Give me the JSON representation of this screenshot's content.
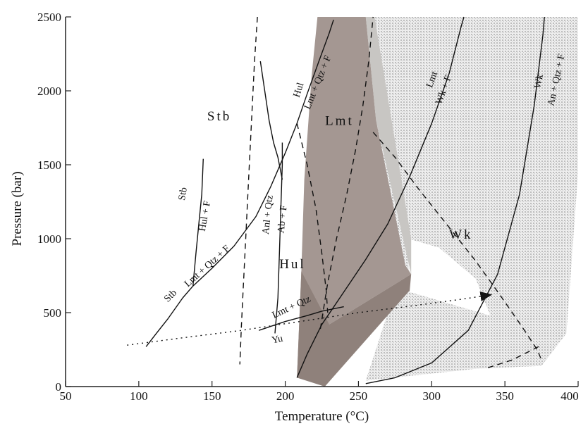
{
  "chart_data": {
    "type": "line",
    "title": "",
    "xlabel": "Temperature (°C)",
    "ylabel": "Pressure (bar)",
    "xlim": [
      50,
      400
    ],
    "ylim": [
      0,
      2500
    ],
    "xticks": [
      "50",
      "100",
      "150",
      "200",
      "250",
      "300",
      "350",
      "400"
    ],
    "yticks": [
      "0",
      "500",
      "1000",
      "1500",
      "2000",
      "2500"
    ],
    "grid": false,
    "fields": [
      {
        "label": "Stb",
        "x": 155,
        "y": 1800
      },
      {
        "label": "Lmt",
        "x": 237,
        "y": 1770
      },
      {
        "label": "Hul",
        "x": 205,
        "y": 800
      },
      {
        "label": "Wk",
        "x": 320,
        "y": 1000
      }
    ],
    "reactions": [
      {
        "label": "Stb",
        "x": 132,
        "y": 1300,
        "rotate": -80
      },
      {
        "label": "Hul + F",
        "x": 147,
        "y": 1150,
        "rotate": -80
      },
      {
        "label": "Stb",
        "x": 123,
        "y": 600,
        "rotate": -45
      },
      {
        "label": "Lmt + Qtz + F",
        "x": 148,
        "y": 800,
        "rotate": -42
      },
      {
        "label": "Anl + Qtz",
        "x": 190,
        "y": 1160,
        "rotate": -84
      },
      {
        "label": "Ab + F",
        "x": 200,
        "y": 1130,
        "rotate": -84
      },
      {
        "label": "Hul",
        "x": 211,
        "y": 2000,
        "rotate": -72
      },
      {
        "label": "Lmt + Qtz + F",
        "x": 224,
        "y": 2050,
        "rotate": -68
      },
      {
        "label": "Lmt + Qtz",
        "x": 205,
        "y": 520,
        "rotate": -25
      },
      {
        "label": "Yu",
        "x": 195,
        "y": 300,
        "rotate": -12
      },
      {
        "label": "Lmt",
        "x": 302,
        "y": 2070,
        "rotate": -70
      },
      {
        "label": "Wk + F",
        "x": 310,
        "y": 2000,
        "rotate": -70
      },
      {
        "label": "Wk",
        "x": 375,
        "y": 2060,
        "rotate": -78
      },
      {
        "label": "An + Qtz + F",
        "x": 387,
        "y": 2070,
        "rotate": -78
      }
    ],
    "series": [
      {
        "style": "solid",
        "points": [
          [
            105,
            270
          ],
          [
            112,
            360
          ],
          [
            120,
            460
          ],
          [
            130,
            600
          ],
          [
            137,
            680
          ],
          [
            150,
            800
          ],
          [
            165,
            950
          ],
          [
            180,
            1150
          ],
          [
            190,
            1350
          ],
          [
            200,
            1580
          ],
          [
            208,
            1780
          ],
          [
            215,
            1980
          ],
          [
            223,
            2200
          ],
          [
            230,
            2390
          ],
          [
            233,
            2480
          ]
        ]
      },
      {
        "style": "solid",
        "points": [
          [
            137,
            680
          ],
          [
            139,
            900
          ],
          [
            141,
            1100
          ],
          [
            143,
            1300
          ],
          [
            144,
            1540
          ]
        ]
      },
      {
        "style": "solid",
        "points": [
          [
            193,
            360
          ],
          [
            195,
            600
          ],
          [
            196,
            900
          ],
          [
            197,
            1200
          ],
          [
            198,
            1500
          ],
          [
            198,
            1650
          ]
        ]
      },
      {
        "style": "solid",
        "points": [
          [
            183,
            2200
          ],
          [
            186,
            2000
          ],
          [
            189,
            1800
          ],
          [
            192,
            1650
          ],
          [
            195,
            1550
          ],
          [
            198,
            1400
          ]
        ]
      },
      {
        "style": "solid",
        "points": [
          [
            208,
            60
          ],
          [
            215,
            220
          ],
          [
            225,
            420
          ],
          [
            240,
            640
          ],
          [
            255,
            860
          ],
          [
            270,
            1100
          ],
          [
            285,
            1420
          ],
          [
            300,
            1780
          ],
          [
            312,
            2120
          ],
          [
            320,
            2430
          ],
          [
            322,
            2500
          ]
        ]
      },
      {
        "style": "solid",
        "points": [
          [
            182,
            380
          ],
          [
            200,
            440
          ],
          [
            215,
            480
          ],
          [
            225,
            510
          ],
          [
            240,
            540
          ]
        ]
      },
      {
        "style": "solid",
        "points": [
          [
            255,
            20
          ],
          [
            275,
            60
          ],
          [
            300,
            160
          ],
          [
            325,
            380
          ],
          [
            345,
            760
          ],
          [
            360,
            1300
          ],
          [
            370,
            1900
          ],
          [
            376,
            2380
          ],
          [
            377,
            2500
          ]
        ]
      },
      {
        "style": "dashed",
        "points": [
          [
            181,
            2500
          ],
          [
            179,
            2200
          ],
          [
            177,
            1800
          ],
          [
            175,
            1400
          ],
          [
            173,
            1000
          ],
          [
            171,
            600
          ],
          [
            170,
            400
          ],
          [
            169,
            150
          ]
        ]
      },
      {
        "style": "dashed",
        "points": [
          [
            208,
            1780
          ],
          [
            215,
            1500
          ],
          [
            221,
            1200
          ],
          [
            225,
            900
          ],
          [
            228,
            650
          ],
          [
            229,
            500
          ]
        ]
      },
      {
        "style": "dashed",
        "points": [
          [
            224,
            390
          ],
          [
            229,
            700
          ],
          [
            235,
            1000
          ],
          [
            242,
            1300
          ],
          [
            248,
            1600
          ],
          [
            253,
            1900
          ],
          [
            257,
            2200
          ],
          [
            260,
            2500
          ]
        ]
      },
      {
        "style": "dashed",
        "points": [
          [
            260,
            1720
          ],
          [
            275,
            1550
          ],
          [
            290,
            1350
          ],
          [
            310,
            1100
          ],
          [
            330,
            850
          ],
          [
            348,
            600
          ],
          [
            362,
            400
          ],
          [
            372,
            250
          ],
          [
            375,
            180
          ]
        ]
      },
      {
        "style": "dashed",
        "points": [
          [
            373,
            270
          ],
          [
            355,
            180
          ],
          [
            336,
            120
          ]
        ]
      },
      {
        "style": "dotted",
        "points": [
          [
            92,
            280
          ],
          [
            130,
            330
          ],
          [
            170,
            380
          ],
          [
            210,
            440
          ],
          [
            250,
            500
          ],
          [
            290,
            550
          ],
          [
            320,
            590
          ],
          [
            340,
            620
          ]
        ]
      }
    ]
  },
  "colors": {
    "shade_dark": "#a49792",
    "shade_mid": "#8f817b",
    "shade_light": "#c8c6c3",
    "stipple": "#d7d7d7",
    "line": "#111111",
    "axis": "#222222"
  }
}
